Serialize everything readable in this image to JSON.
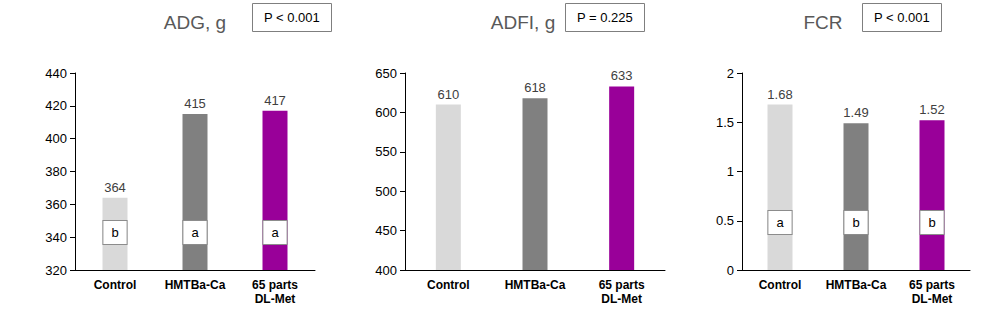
{
  "chart_data": [
    {
      "type": "bar",
      "title": "ADG, g",
      "annotations": {
        "p_value": "P < 0.001",
        "letters": [
          "b",
          "a",
          "a"
        ]
      },
      "categories": [
        "Control",
        "HMTBa-Ca",
        "65 parts\nDL-Met"
      ],
      "values": [
        364,
        415,
        417
      ],
      "colors": [
        "#d9d9d9",
        "#808080",
        "#990099"
      ],
      "ylim": [
        320,
        440
      ],
      "yticks": [
        320,
        340,
        360,
        380,
        400,
        420,
        440
      ],
      "grid": false,
      "data_labels": true
    },
    {
      "type": "bar",
      "title": "ADFI, g",
      "annotations": {
        "p_value": "P = 0.225"
      },
      "categories": [
        "Control",
        "HMTBa-Ca",
        "65 parts\nDL-Met"
      ],
      "values": [
        610,
        618,
        633
      ],
      "colors": [
        "#d9d9d9",
        "#808080",
        "#990099"
      ],
      "ylim": [
        400,
        650
      ],
      "yticks": [
        400,
        450,
        500,
        550,
        600,
        650
      ],
      "grid": false,
      "data_labels": true
    },
    {
      "type": "bar",
      "title": "FCR",
      "annotations": {
        "p_value": "P < 0.001",
        "letters": [
          "a",
          "b",
          "b"
        ]
      },
      "categories": [
        "Control",
        "HMTBa-Ca",
        "65 parts\nDL-Met"
      ],
      "values": [
        1.68,
        1.49,
        1.52
      ],
      "colors": [
        "#d9d9d9",
        "#808080",
        "#990099"
      ],
      "ylim": [
        0,
        2
      ],
      "yticks": [
        0,
        0.5,
        1,
        1.5,
        2
      ],
      "grid": false,
      "data_labels": true
    }
  ]
}
